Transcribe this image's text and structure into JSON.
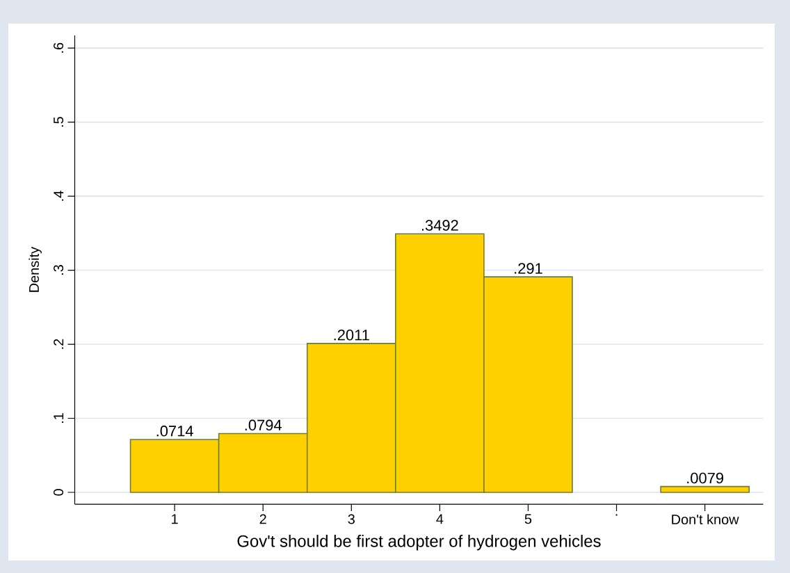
{
  "chart_data": {
    "type": "histogram",
    "xlabel": "Gov't should be first adopter of hydrogen vehicles",
    "ylabel": "Density",
    "bins": [
      0.5,
      1.5,
      2.5,
      3.5,
      4.5,
      5.5,
      6.5,
      7.5
    ],
    "values": [
      0.0714,
      0.0794,
      0.2011,
      0.3492,
      0.291,
      null,
      0.0079
    ],
    "value_labels": [
      ".0714",
      ".0794",
      ".2011",
      ".3492",
      ".291",
      null,
      ".0079"
    ],
    "color": "#ffd000",
    "xlim": [
      -0.13,
      7.66
    ],
    "xticks": [
      1,
      2,
      3,
      4,
      5,
      {
        "value": 6,
        "label": "."
      },
      {
        "value": 7,
        "label": "Don't know"
      }
    ],
    "ylim": [
      -0.016,
      0.617
    ],
    "yticks": [
      0,
      {
        "value": 0.1,
        "label": ".1"
      },
      {
        "value": 0.2,
        "label": ".2"
      },
      {
        "value": 0.3,
        "label": ".3"
      },
      {
        "value": 0.4,
        "label": ".4"
      },
      {
        "value": 0.5,
        "label": ".5"
      },
      {
        "value": 0.6,
        "label": ".6"
      }
    ],
    "grid": "y"
  }
}
